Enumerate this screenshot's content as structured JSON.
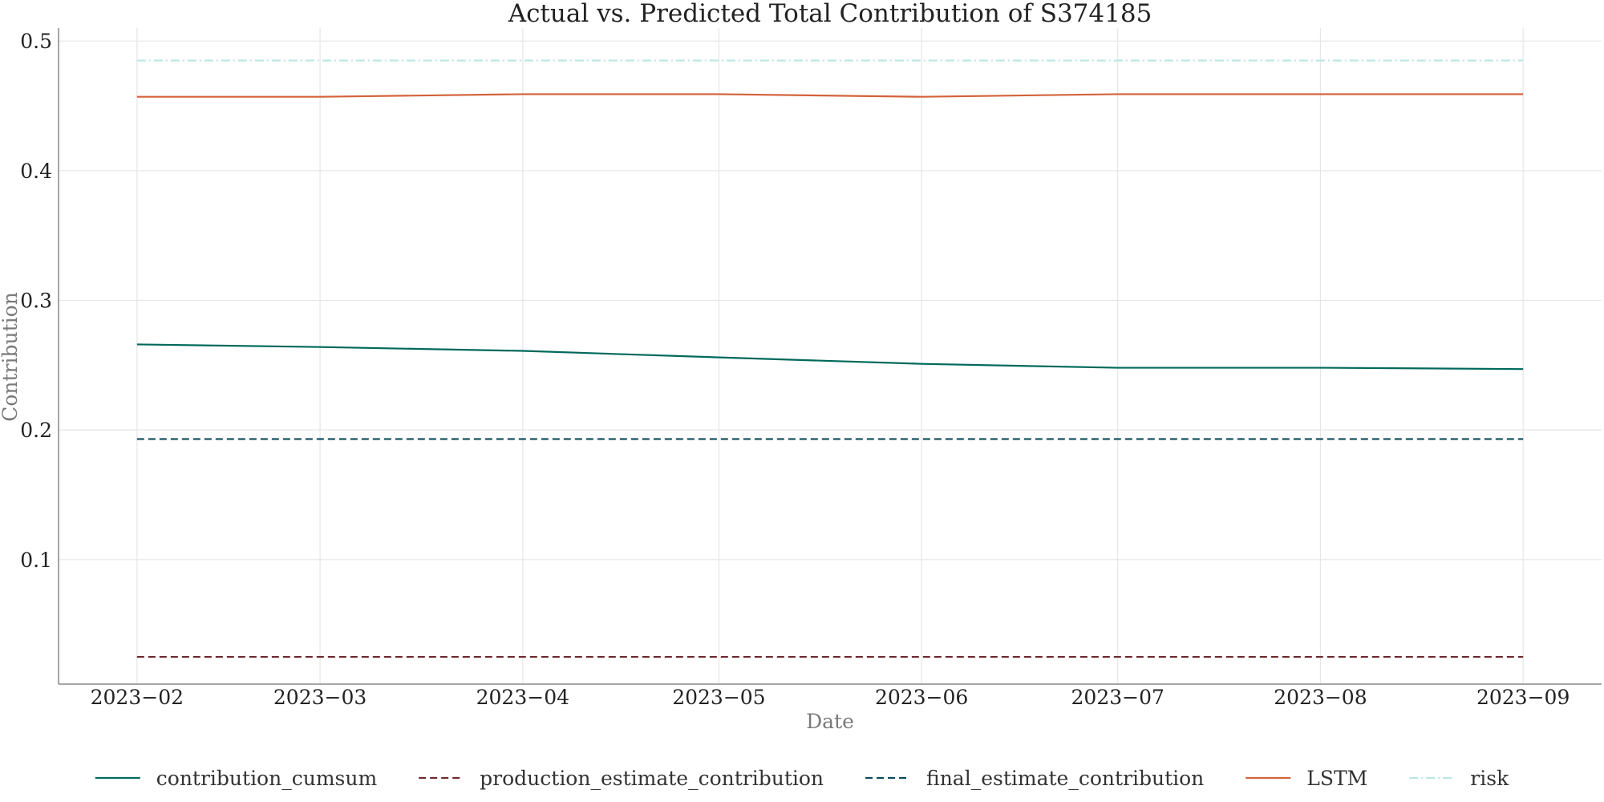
{
  "chart_data": {
    "type": "line",
    "title": "Actual vs. Predicted Total Contribution of S374185",
    "xlabel": "Date",
    "ylabel": "Contribution",
    "x": [
      "2023-02",
      "2023-03",
      "2023-04",
      "2023-05",
      "2023-06",
      "2023-07",
      "2023-08",
      "2023-09"
    ],
    "x_tick_labels": [
      "2023−02",
      "2023−03",
      "2023−04",
      "2023−05",
      "2023−06",
      "2023−07",
      "2023−08",
      "2023−09"
    ],
    "y_ticks": [
      0.1,
      0.2,
      0.3,
      0.4,
      0.5
    ],
    "y_tick_labels": [
      "0.1",
      "0.2",
      "0.3",
      "0.4",
      "0.5"
    ],
    "ylim": [
      0.004,
      0.51
    ],
    "xlim": [
      "2023-01-20",
      "2023-09-13"
    ],
    "grid": true,
    "legend_position": "bottom",
    "series": [
      {
        "name": "contribution_cumsum",
        "color": "#00695c",
        "style": "solid",
        "values": [
          0.266,
          0.264,
          0.261,
          0.256,
          0.251,
          0.248,
          0.248,
          0.247
        ]
      },
      {
        "name": "production_estimate_contribution",
        "color": "#6d2a2e",
        "style": "dashed",
        "values": [
          0.025,
          0.025,
          0.025,
          0.025,
          0.025,
          0.025,
          0.025,
          0.025
        ]
      },
      {
        "name": "final_estimate_contribution",
        "color": "#0d4a5a",
        "style": "dashed",
        "values": [
          0.193,
          0.193,
          0.193,
          0.193,
          0.193,
          0.193,
          0.193,
          0.193
        ]
      },
      {
        "name": "LSTM",
        "color": "#d4623a",
        "style": "solid",
        "values": [
          0.457,
          0.457,
          0.459,
          0.459,
          0.457,
          0.459,
          0.459,
          0.459
        ]
      },
      {
        "name": "risk",
        "color": "#b9e6e2",
        "style": "dashdot",
        "values": [
          0.485,
          0.485,
          0.485,
          0.485,
          0.485,
          0.485,
          0.485,
          0.485
        ]
      }
    ]
  }
}
